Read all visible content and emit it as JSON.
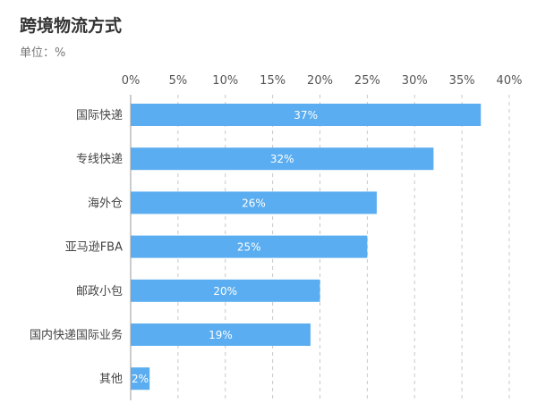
{
  "title": "跨境物流方式",
  "unit_label": "单位：%",
  "colors": {
    "bar": "#5aadf0",
    "grid": "#c8c8c8",
    "axis": "#999999"
  },
  "chart_data": {
    "type": "bar",
    "orientation": "horizontal",
    "title": "跨境物流方式",
    "unit": "%",
    "categories": [
      "国际快递",
      "专线快递",
      "海外仓",
      "亚马逊FBA",
      "邮政小包",
      "国内快递国际业务",
      "其他"
    ],
    "values": [
      37,
      32,
      26,
      25,
      20,
      19,
      2
    ],
    "data_labels": [
      "37%",
      "32%",
      "26%",
      "25%",
      "20%",
      "19%",
      "2%"
    ],
    "x_ticks": [
      0,
      5,
      10,
      15,
      20,
      25,
      30,
      35,
      40
    ],
    "x_tick_labels": [
      "0%",
      "5%",
      "10%",
      "15%",
      "20%",
      "25%",
      "30%",
      "35%",
      "40%"
    ],
    "xlim": [
      0,
      40
    ],
    "axis_position": "top",
    "grid": "vertical dashed"
  }
}
